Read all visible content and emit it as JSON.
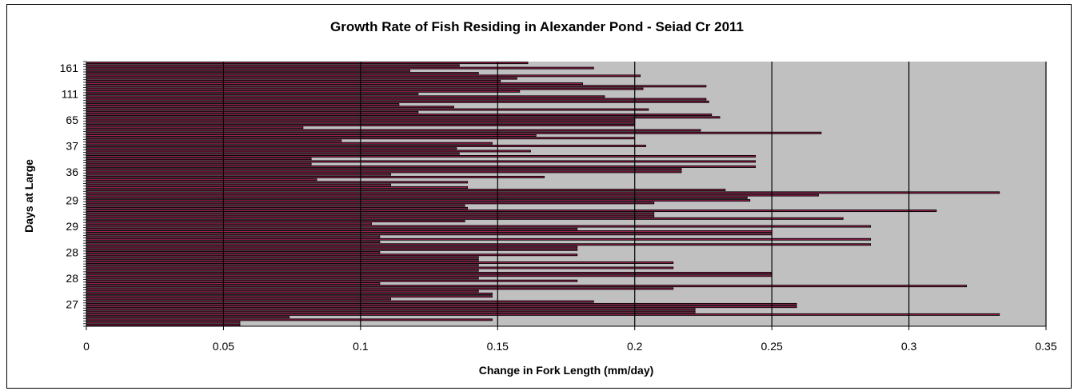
{
  "chart_data": {
    "type": "bar",
    "orientation": "horizontal",
    "title": "Growth Rate of Fish Residing in Alexander Pond - Seiad Cr 2011",
    "xlabel": "Change in Fork Length (mm/day)",
    "ylabel": "Days at Large",
    "xlim": [
      0,
      0.35
    ],
    "xticks": [
      "0",
      "0.05",
      "0.1",
      "0.15",
      "0.2",
      "0.25",
      "0.3",
      "0.35"
    ],
    "y_tick_labels": [
      "161",
      "111",
      "65",
      "37",
      "36",
      "29",
      "29",
      "28",
      "28",
      "27"
    ],
    "grid": "vertical",
    "legend": "none",
    "colors": {
      "bar_fill": "#9c1f50",
      "bar_outline": "#000000",
      "plot_background": "#c0c0c0"
    },
    "values": [
      0.161,
      0.136,
      0.185,
      0.118,
      0.143,
      0.202,
      0.157,
      0.151,
      0.181,
      0.226,
      0.203,
      0.158,
      0.121,
      0.189,
      0.226,
      0.227,
      0.114,
      0.134,
      0.205,
      0.121,
      0.228,
      0.231,
      0.2,
      0.2,
      0.2,
      0.079,
      0.224,
      0.268,
      0.164,
      0.2,
      0.093,
      0.148,
      0.204,
      0.135,
      0.162,
      0.136,
      0.244,
      0.082,
      0.244,
      0.082,
      0.244,
      0.217,
      0.217,
      0.111,
      0.167,
      0.084,
      0.139,
      0.111,
      0.139,
      0.233,
      0.333,
      0.267,
      0.241,
      0.242,
      0.207,
      0.138,
      0.139,
      0.31,
      0.207,
      0.207,
      0.276,
      0.138,
      0.104,
      0.286,
      0.179,
      0.25,
      0.25,
      0.107,
      0.286,
      0.107,
      0.286,
      0.179,
      0.179,
      0.107,
      0.179,
      0.143,
      0.143,
      0.214,
      0.143,
      0.214,
      0.143,
      0.25,
      0.25,
      0.143,
      0.179,
      0.107,
      0.321,
      0.214,
      0.143,
      0.148,
      0.148,
      0.111,
      0.185,
      0.259,
      0.259,
      0.222,
      0.222,
      0.333,
      0.074,
      0.148,
      0.056,
      0.056
    ]
  }
}
